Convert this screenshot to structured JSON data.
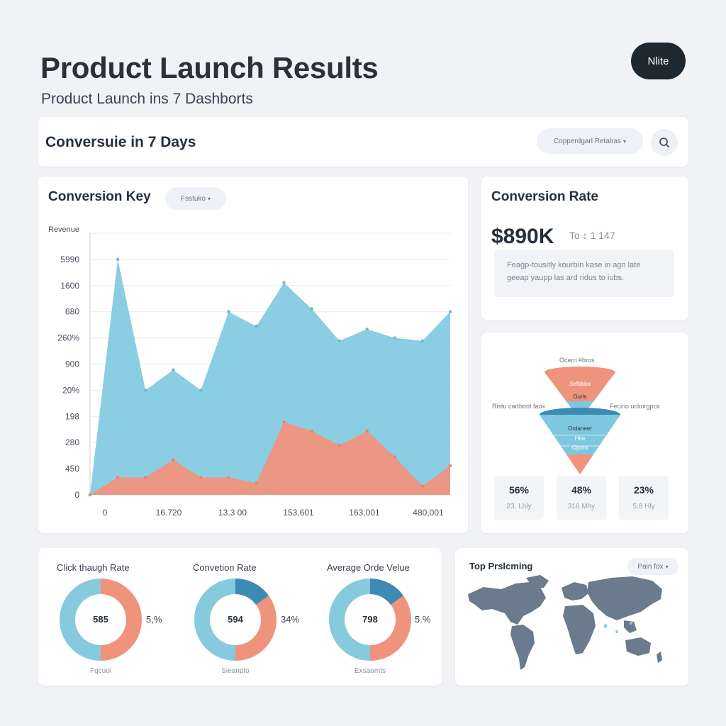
{
  "header": {
    "title": "Product Launch Results",
    "subtitle": "Product Launch ins 7 Dashborts",
    "action_button": "Nlite"
  },
  "banner": {
    "title": "Conversuie in 7 Days",
    "dropdown_label": "Copperdgarl Retalras",
    "search_icon": "search-icon"
  },
  "main_chart": {
    "title": "Conversion Key",
    "filter_label": "Fsstuko",
    "chart_data": {
      "type": "area",
      "ylabel": "Revenue",
      "y_tick_labels": [
        "5990",
        "1600",
        "680",
        "260%",
        "900",
        "20%",
        "198",
        "280",
        "450",
        "0"
      ],
      "x_tick_labels": [
        "0",
        "16.720",
        "13.3 00",
        "153,601",
        "163,001",
        "480,001"
      ],
      "series": [
        {
          "color": "#7ec8df",
          "values": [
            0,
            8.1,
            3.6,
            4.3,
            3.6,
            6.3,
            5.8,
            7.3,
            6.4,
            5.3,
            5.7,
            5.4,
            5.3,
            6.3
          ]
        },
        {
          "color": "#f0937d",
          "values": [
            0,
            0.6,
            0.6,
            1.2,
            0.6,
            0.6,
            0.4,
            2.5,
            2.2,
            1.7,
            2.2,
            1.3,
            0.3,
            1.0
          ]
        }
      ]
    }
  },
  "conversion_rate": {
    "title": "Conversion Rate",
    "value": "$890K",
    "value_sub": "To ↕ 1 147",
    "note": "Feagp-tousitly kourbin kase in agn late geeap yaupp las ard ridus to iubs."
  },
  "funnel": {
    "top_label": "Ocern #bros",
    "left_label": "Ristu cartboot faox",
    "right_label": "Fecirio uckorgpox",
    "top_funnel_labels": [
      "Sefbbba",
      "Guris"
    ],
    "bottom_funnel_labels": [
      "Ordaneer",
      "Hhe",
      "Opuro"
    ],
    "stats": [
      {
        "value": "56%",
        "sub": "23, Lhly"
      },
      {
        "value": "48%",
        "sub": "316 Mhy"
      },
      {
        "value": "23%",
        "sub": "5.8 Hly"
      }
    ]
  },
  "donuts": [
    {
      "label": "Click thaugh Rate",
      "center": "585",
      "pct": "5,%",
      "footer": "Fqcuoi",
      "colors": [
        "#86cade",
        "#f0937d"
      ]
    },
    {
      "label": "Convetion Rate",
      "center": "594",
      "pct": "34%",
      "footer": "Sieanpto",
      "colors": [
        "#86cade",
        "#f0937d",
        "#3b8bb5"
      ]
    },
    {
      "label": "Average Orde Velue",
      "center": "798",
      "pct": "5.%",
      "footer": "Exsaomts",
      "colors": [
        "#86cade",
        "#f0937d",
        "#3b8bb5"
      ]
    }
  ],
  "map_card": {
    "title": "Top Prslcming",
    "filter_label": "Pain fox"
  }
}
